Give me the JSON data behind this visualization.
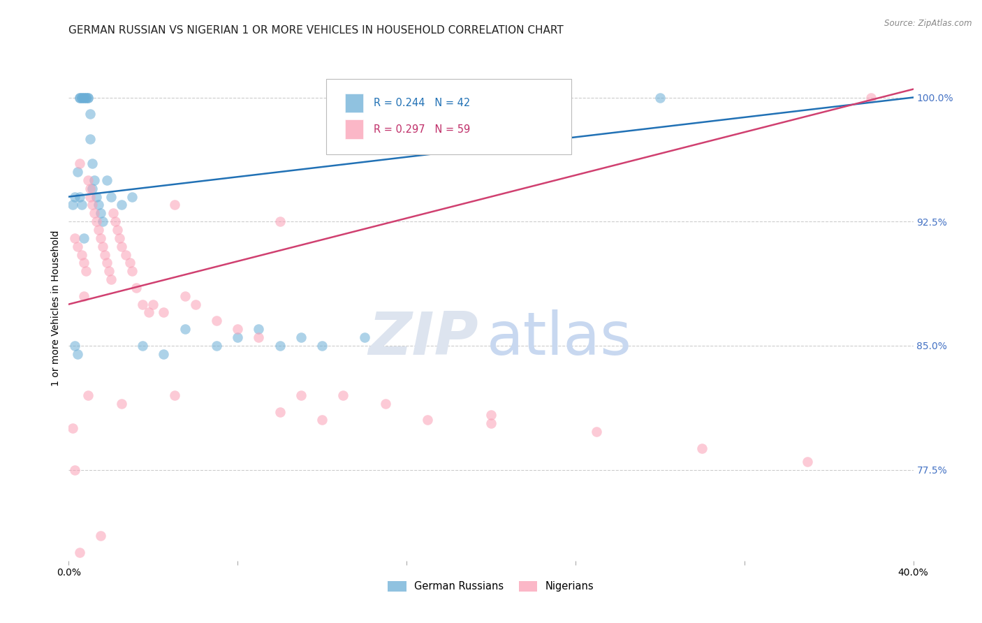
{
  "title": "GERMAN RUSSIAN VS NIGERIAN 1 OR MORE VEHICLES IN HOUSEHOLD CORRELATION CHART",
  "source": "Source: ZipAtlas.com",
  "ylabel": "1 or more Vehicles in Household",
  "xlim": [
    0.0,
    40.0
  ],
  "ylim": [
    72.0,
    102.5
  ],
  "yticks": [
    77.5,
    85.0,
    92.5,
    100.0
  ],
  "blue_color": "#6baed6",
  "pink_color": "#fa9fb5",
  "blue_line_color": "#2171b5",
  "pink_line_color": "#d04070",
  "legend_blue_R": "R = 0.244",
  "legend_blue_N": "N = 42",
  "legend_pink_R": "R = 0.297",
  "legend_pink_N": "N = 59",
  "legend_blue_label": "German Russians",
  "legend_pink_label": "Nigerians",
  "blue_x": [
    0.2,
    0.3,
    0.4,
    0.5,
    0.5,
    0.6,
    0.6,
    0.7,
    0.7,
    0.8,
    0.8,
    0.9,
    0.9,
    1.0,
    1.0,
    1.1,
    1.1,
    1.2,
    1.3,
    1.4,
    1.5,
    1.6,
    1.8,
    2.0,
    2.5,
    3.0,
    3.5,
    4.5,
    5.5,
    7.0,
    8.0,
    9.0,
    10.0,
    11.0,
    12.0,
    14.0,
    0.3,
    0.4,
    0.5,
    0.6,
    28.0,
    0.7
  ],
  "blue_y": [
    93.5,
    94.0,
    95.5,
    100.0,
    100.0,
    100.0,
    100.0,
    100.0,
    100.0,
    100.0,
    100.0,
    100.0,
    100.0,
    99.0,
    97.5,
    96.0,
    94.5,
    95.0,
    94.0,
    93.5,
    93.0,
    92.5,
    95.0,
    94.0,
    93.5,
    94.0,
    85.0,
    84.5,
    86.0,
    85.0,
    85.5,
    86.0,
    85.0,
    85.5,
    85.0,
    85.5,
    85.0,
    84.5,
    94.0,
    93.5,
    100.0,
    91.5
  ],
  "pink_x": [
    0.2,
    0.3,
    0.4,
    0.5,
    0.6,
    0.7,
    0.8,
    0.9,
    1.0,
    1.0,
    1.1,
    1.2,
    1.3,
    1.4,
    1.5,
    1.6,
    1.7,
    1.8,
    1.9,
    2.0,
    2.1,
    2.2,
    2.3,
    2.4,
    2.5,
    2.7,
    2.9,
    3.0,
    3.2,
    3.5,
    3.8,
    4.0,
    4.5,
    5.0,
    5.5,
    6.0,
    7.0,
    8.0,
    9.0,
    10.0,
    11.0,
    13.0,
    15.0,
    17.0,
    20.0,
    25.0,
    30.0,
    35.0,
    38.0,
    0.3,
    1.5,
    0.5,
    0.7,
    0.9,
    2.5,
    5.0,
    10.0,
    12.0,
    20.0
  ],
  "pink_y": [
    80.0,
    91.5,
    91.0,
    72.5,
    90.5,
    90.0,
    89.5,
    95.0,
    94.5,
    94.0,
    93.5,
    93.0,
    92.5,
    92.0,
    91.5,
    91.0,
    90.5,
    90.0,
    89.5,
    89.0,
    93.0,
    92.5,
    92.0,
    91.5,
    91.0,
    90.5,
    90.0,
    89.5,
    88.5,
    87.5,
    87.0,
    87.5,
    87.0,
    93.5,
    88.0,
    87.5,
    86.5,
    86.0,
    85.5,
    92.5,
    82.0,
    82.0,
    81.5,
    80.5,
    80.8,
    79.8,
    78.8,
    78.0,
    100.0,
    77.5,
    73.5,
    96.0,
    88.0,
    82.0,
    81.5,
    82.0,
    81.0,
    80.5,
    80.3
  ],
  "background_color": "#ffffff",
  "title_fontsize": 11,
  "axis_label_fontsize": 10,
  "tick_fontsize": 10,
  "dot_size": 110,
  "dot_alpha": 0.55,
  "line_width": 1.8
}
